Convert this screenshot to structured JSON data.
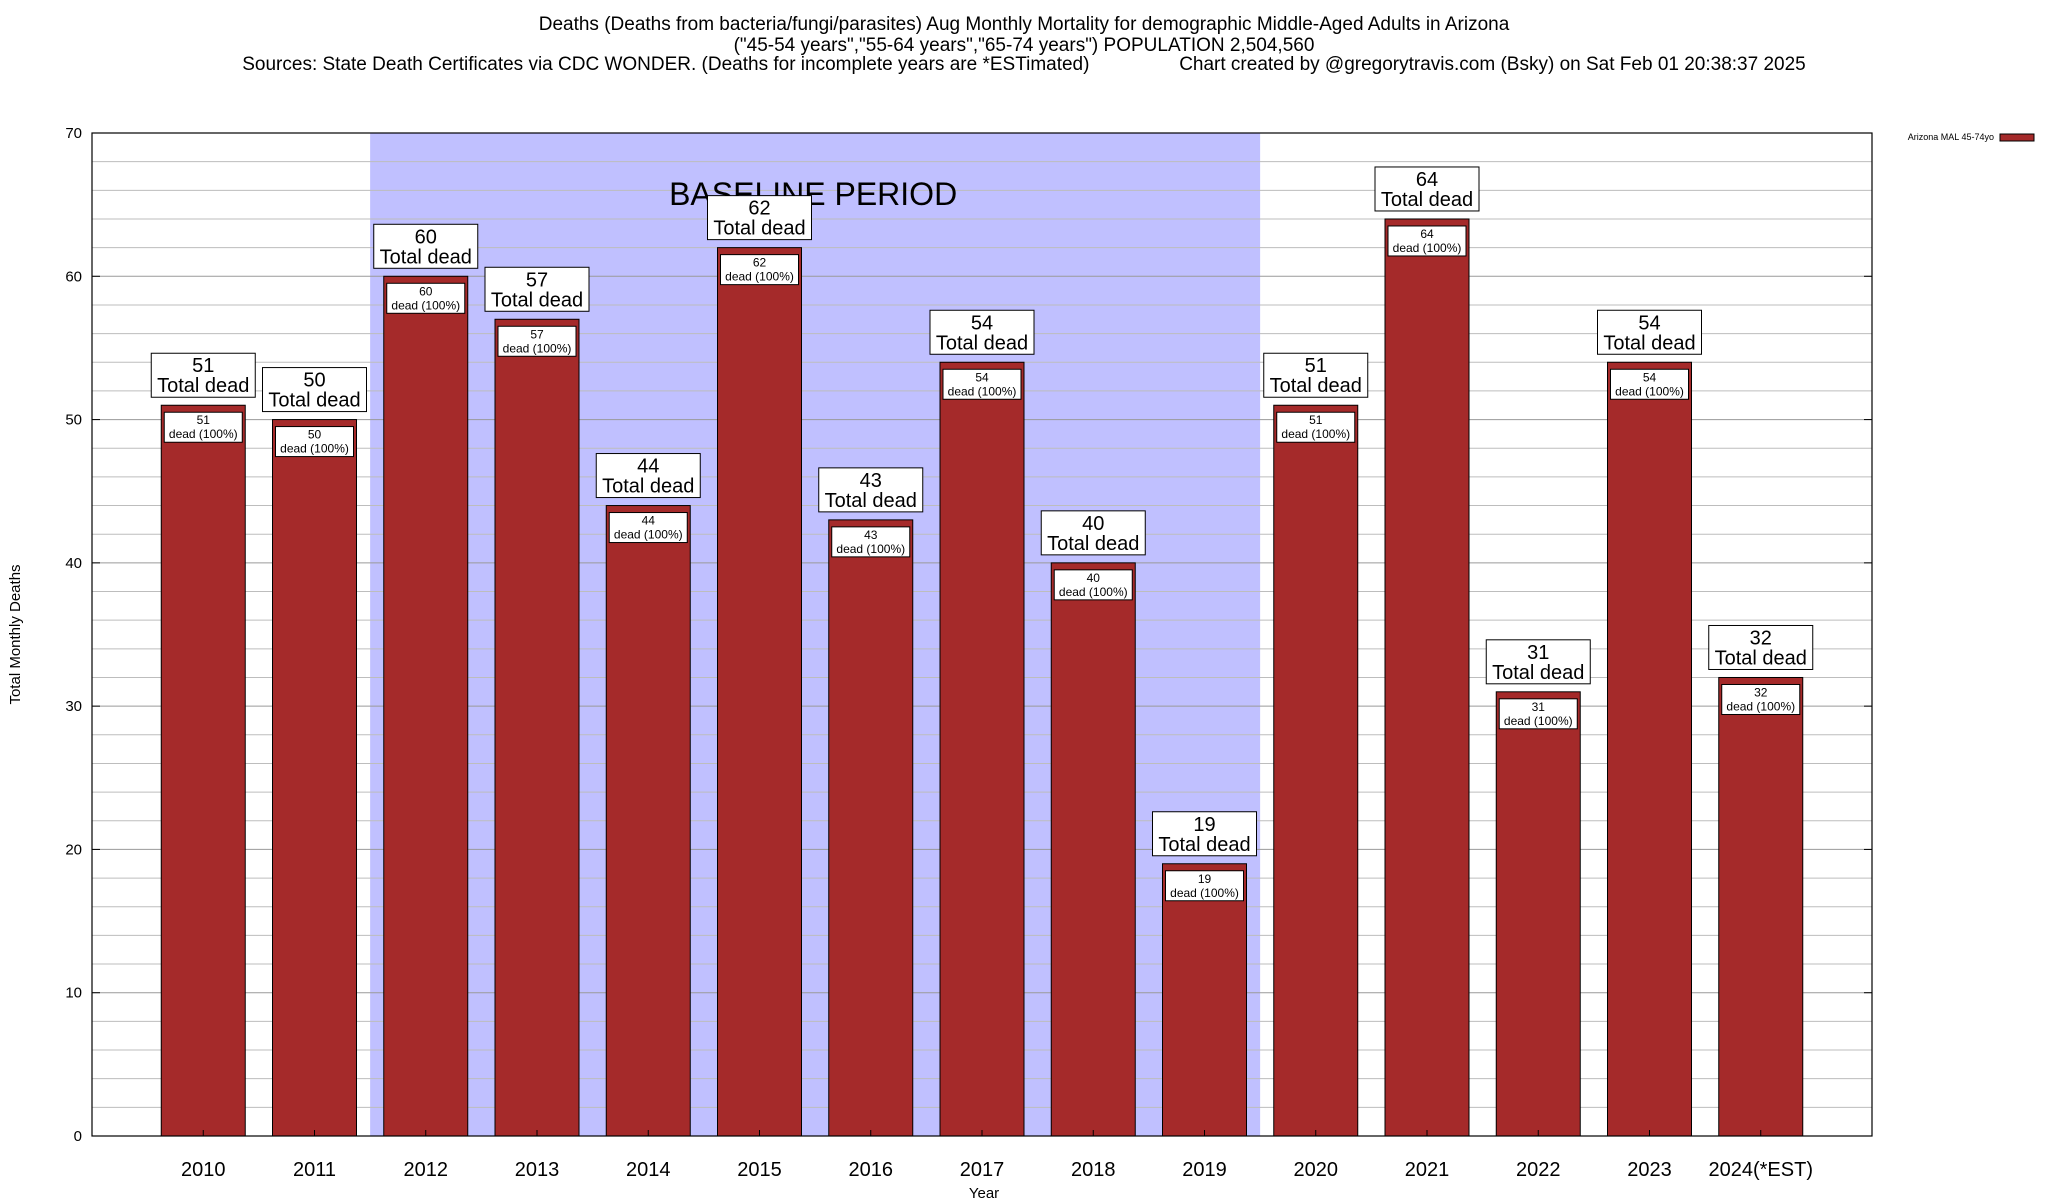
{
  "title": {
    "line1": "Deaths (Deaths from bacteria/fungi/parasites) Aug Monthly Mortality for demographic Middle-Aged Adults in Arizona",
    "line2": "(\"45-54 years\",\"55-64 years\",\"65-74 years\") POPULATION 2,504,560",
    "line3": "Sources: State Death Certificates via CDC WONDER. (Deaths for incomplete years are *ESTimated)                 Chart created by @gregorytravis.com (Bsky) on Sat Feb 01 20:38:37 2025"
  },
  "chart_data": {
    "type": "bar",
    "xlabel": "Year",
    "ylabel": "Total Monthly Deaths",
    "ylim": [
      0,
      70
    ],
    "yticks": [
      0,
      10,
      20,
      30,
      40,
      50,
      60,
      70
    ],
    "grid": true,
    "minor_grid_step": 2,
    "categories": [
      "2010",
      "2011",
      "2012",
      "2013",
      "2014",
      "2015",
      "2016",
      "2017",
      "2018",
      "2019",
      "2020",
      "2021",
      "2022",
      "2023",
      "2024(*EST)"
    ],
    "series": [
      {
        "name": "Arizona MAL 45-74yo",
        "color": "#a52a2a",
        "values": [
          51,
          50,
          60,
          57,
          44,
          62,
          43,
          54,
          40,
          19,
          51,
          64,
          31,
          54,
          32
        ]
      }
    ],
    "bar_top_label": "Total dead",
    "bar_inner_label": "dead (100%)",
    "legend_position": "top-right",
    "baseline_period": {
      "label": "BASELINE PERIOD",
      "from": "2012",
      "to": "2019",
      "color": "#c0c0ff"
    }
  }
}
